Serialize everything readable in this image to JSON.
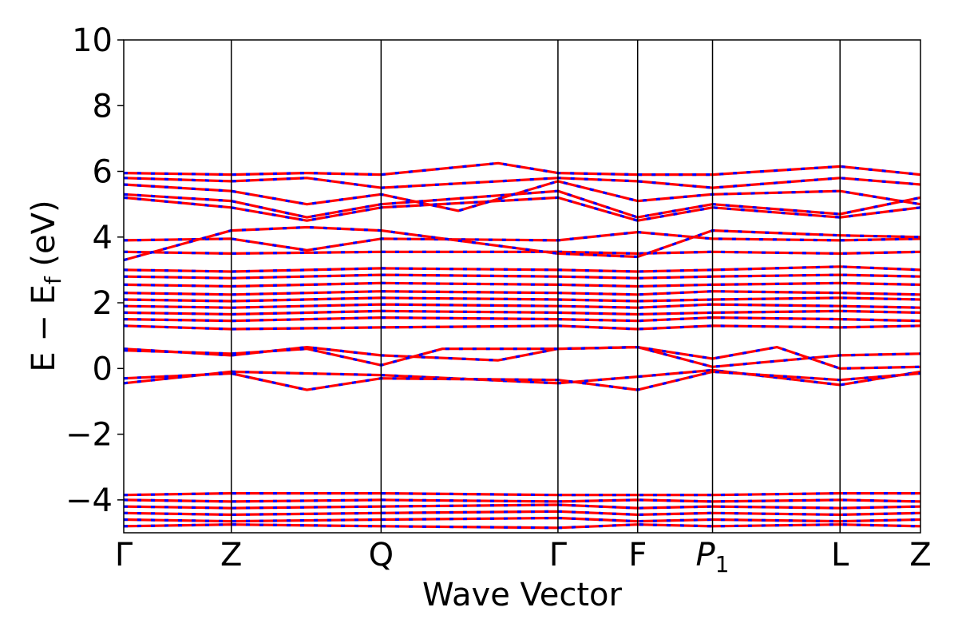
{
  "chart_data": {
    "type": "line",
    "title": "",
    "xlabel": "Wave Vector",
    "ylabel_main": "E − E",
    "ylabel_sub": "f",
    "ylabel_unit": "(eV)",
    "ylim": [
      -5,
      10
    ],
    "yticks": [
      -4,
      -2,
      0,
      2,
      4,
      6,
      8,
      10
    ],
    "ytick_labels": [
      "−4",
      "−2",
      "0",
      "2",
      "4",
      "6",
      "8",
      "10"
    ],
    "kpoints": [
      {
        "label": "Γ",
        "pos": 0.0
      },
      {
        "label": "Z",
        "pos": 0.135
      },
      {
        "label": "Q",
        "pos": 0.323
      },
      {
        "label": "Γ",
        "pos": 0.545
      },
      {
        "label": "F",
        "pos": 0.645
      },
      {
        "label": "P",
        "sub": "1",
        "pos": 0.739
      },
      {
        "label": "L",
        "pos": 0.899
      },
      {
        "label": "Z",
        "pos": 1.0
      }
    ],
    "band_colors": [
      "#ff0000",
      "#0000ff"
    ],
    "bands": [
      {
        "x": [
          0,
          0.135,
          0.323,
          0.545,
          0.645,
          0.739,
          0.899,
          1.0
        ],
        "y": [
          -0.45,
          -0.1,
          -0.2,
          -0.45,
          -0.25,
          -0.05,
          -0.5,
          -0.1
        ]
      },
      {
        "x": [
          0,
          0.135,
          0.23,
          0.323,
          0.545,
          0.645,
          0.739,
          0.899,
          1.0
        ],
        "y": [
          -0.3,
          -0.15,
          -0.65,
          -0.3,
          -0.35,
          -0.65,
          -0.1,
          -0.35,
          -0.15
        ]
      },
      {
        "x": [
          0,
          0.135,
          0.23,
          0.323,
          0.47,
          0.545,
          0.645,
          0.739,
          0.899,
          1.0
        ],
        "y": [
          0.6,
          0.4,
          0.65,
          0.4,
          0.25,
          0.6,
          0.65,
          0.05,
          0.4,
          0.45
        ]
      },
      {
        "x": [
          0,
          0.135,
          0.23,
          0.323,
          0.4,
          0.545,
          0.645,
          0.739,
          0.82,
          0.899,
          1.0
        ],
        "y": [
          0.55,
          0.45,
          0.6,
          0.1,
          0.6,
          0.6,
          0.65,
          0.3,
          0.65,
          0.0,
          0.05
        ]
      },
      {
        "x": [
          0,
          0.135,
          0.323,
          0.545,
          0.645,
          0.739,
          0.899,
          1.0
        ],
        "y": [
          1.3,
          1.2,
          1.25,
          1.3,
          1.2,
          1.3,
          1.25,
          1.3
        ]
      },
      {
        "x": [
          0,
          0.135,
          0.323,
          0.545,
          0.645,
          0.739,
          0.899,
          1.0
        ],
        "y": [
          1.5,
          1.45,
          1.55,
          1.5,
          1.45,
          1.55,
          1.5,
          1.45
        ]
      },
      {
        "x": [
          0,
          0.135,
          0.323,
          0.545,
          0.645,
          0.739,
          0.899,
          1.0
        ],
        "y": [
          1.7,
          1.65,
          1.75,
          1.7,
          1.65,
          1.7,
          1.75,
          1.7
        ]
      },
      {
        "x": [
          0,
          0.135,
          0.323,
          0.545,
          0.645,
          0.739,
          0.899,
          1.0
        ],
        "y": [
          1.9,
          1.85,
          1.95,
          1.9,
          1.85,
          1.95,
          1.9,
          1.85
        ]
      },
      {
        "x": [
          0,
          0.135,
          0.323,
          0.545,
          0.645,
          0.739,
          0.899,
          1.0
        ],
        "y": [
          2.1,
          2.05,
          2.15,
          2.1,
          2.05,
          2.1,
          2.15,
          2.1
        ]
      },
      {
        "x": [
          0,
          0.135,
          0.323,
          0.545,
          0.645,
          0.739,
          0.899,
          1.0
        ],
        "y": [
          2.3,
          2.25,
          2.35,
          2.3,
          2.25,
          2.35,
          2.3,
          2.25
        ]
      },
      {
        "x": [
          0,
          0.135,
          0.323,
          0.545,
          0.645,
          0.739,
          0.899,
          1.0
        ],
        "y": [
          2.55,
          2.5,
          2.6,
          2.55,
          2.5,
          2.55,
          2.6,
          2.55
        ]
      },
      {
        "x": [
          0,
          0.135,
          0.323,
          0.545,
          0.645,
          0.739,
          0.899,
          1.0
        ],
        "y": [
          2.8,
          2.75,
          2.85,
          2.8,
          2.75,
          2.8,
          2.85,
          2.8
        ]
      },
      {
        "x": [
          0,
          0.135,
          0.323,
          0.545,
          0.645,
          0.739,
          0.899,
          1.0
        ],
        "y": [
          3.0,
          2.95,
          3.05,
          3.0,
          2.95,
          3.0,
          3.1,
          3.0
        ]
      },
      {
        "x": [
          0,
          0.135,
          0.323,
          0.545,
          0.645,
          0.739,
          0.899,
          1.0
        ],
        "y": [
          3.55,
          3.5,
          3.55,
          3.55,
          3.5,
          3.55,
          3.5,
          3.55
        ]
      },
      {
        "x": [
          0,
          0.135,
          0.23,
          0.323,
          0.545,
          0.645,
          0.739,
          0.899,
          1.0
        ],
        "y": [
          3.9,
          3.95,
          3.6,
          3.95,
          3.9,
          4.15,
          3.95,
          3.9,
          3.95
        ]
      },
      {
        "x": [
          0,
          0.135,
          0.23,
          0.323,
          0.545,
          0.645,
          0.739,
          0.899,
          1.0
        ],
        "y": [
          3.3,
          4.2,
          4.3,
          4.2,
          3.5,
          3.4,
          4.2,
          4.05,
          4.0
        ]
      },
      {
        "x": [
          0,
          0.135,
          0.23,
          0.323,
          0.545,
          0.645,
          0.739,
          0.899,
          1.0
        ],
        "y": [
          5.2,
          4.9,
          4.5,
          4.9,
          5.2,
          4.5,
          4.9,
          4.6,
          4.9
        ]
      },
      {
        "x": [
          0,
          0.135,
          0.23,
          0.323,
          0.545,
          0.645,
          0.739,
          0.899,
          1.0
        ],
        "y": [
          5.3,
          5.1,
          4.6,
          5.0,
          5.4,
          4.6,
          5.0,
          4.7,
          5.2
        ]
      },
      {
        "x": [
          0,
          0.135,
          0.23,
          0.323,
          0.42,
          0.545,
          0.645,
          0.739,
          0.899,
          1.0
        ],
        "y": [
          5.6,
          5.4,
          5.0,
          5.3,
          4.8,
          5.7,
          5.1,
          5.3,
          5.4,
          5.0
        ]
      },
      {
        "x": [
          0,
          0.135,
          0.23,
          0.323,
          0.545,
          0.645,
          0.739,
          0.899,
          1.0
        ],
        "y": [
          5.8,
          5.7,
          5.8,
          5.5,
          5.8,
          5.7,
          5.5,
          5.8,
          5.6
        ]
      },
      {
        "x": [
          0,
          0.135,
          0.23,
          0.323,
          0.47,
          0.545,
          0.645,
          0.739,
          0.899,
          1.0
        ],
        "y": [
          5.95,
          5.9,
          5.95,
          5.9,
          6.25,
          5.95,
          5.9,
          5.9,
          6.15,
          5.9
        ]
      },
      {
        "x": [
          0,
          0.135,
          0.323,
          0.545,
          0.645,
          0.739,
          0.899,
          1.0
        ],
        "y": [
          -3.85,
          -3.8,
          -3.8,
          -3.85,
          -3.85,
          -3.85,
          -3.8,
          -3.8
        ]
      },
      {
        "x": [
          0,
          0.135,
          0.323,
          0.545,
          0.645,
          0.739,
          0.899,
          1.0
        ],
        "y": [
          -4.0,
          -4.05,
          -4.0,
          -4.05,
          -4.0,
          -4.05,
          -4.0,
          -4.05
        ]
      },
      {
        "x": [
          0,
          0.135,
          0.323,
          0.545,
          0.645,
          0.739,
          0.899,
          1.0
        ],
        "y": [
          -4.2,
          -4.25,
          -4.2,
          -4.15,
          -4.25,
          -4.2,
          -4.25,
          -4.2
        ]
      },
      {
        "x": [
          0,
          0.135,
          0.323,
          0.545,
          0.645,
          0.739,
          0.899,
          1.0
        ],
        "y": [
          -4.4,
          -4.45,
          -4.4,
          -4.35,
          -4.45,
          -4.4,
          -4.45,
          -4.4
        ]
      },
      {
        "x": [
          0,
          0.135,
          0.323,
          0.545,
          0.645,
          0.739,
          0.899,
          1.0
        ],
        "y": [
          -4.6,
          -4.65,
          -4.6,
          -4.55,
          -4.65,
          -4.6,
          -4.65,
          -4.6
        ]
      },
      {
        "x": [
          0,
          0.135,
          0.323,
          0.545,
          0.645,
          0.739,
          0.899,
          1.0
        ],
        "y": [
          -4.8,
          -4.75,
          -4.8,
          -4.85,
          -4.75,
          -4.8,
          -4.75,
          -4.8
        ]
      }
    ]
  }
}
